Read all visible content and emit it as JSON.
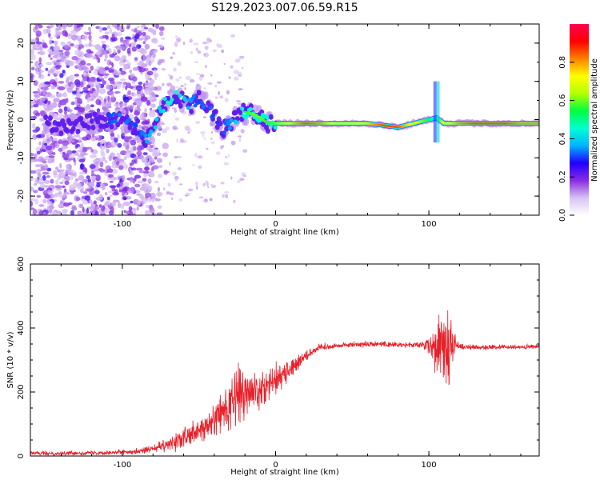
{
  "figure": {
    "title": "S129.2023.007.06.59.R15"
  },
  "chart_data": [
    {
      "type": "heatmap",
      "xlabel": "Height of straight line (km)",
      "ylabel": "Frequency (Hz)",
      "xlim": [
        -160,
        172
      ],
      "ylim": [
        -25,
        25
      ],
      "xticks": [
        -100,
        0,
        100
      ],
      "yticks": [
        -20,
        -10,
        0,
        10,
        20
      ],
      "colorbar": {
        "label": "Normalized spectral amplitude",
        "range": [
          0,
          1
        ],
        "ticks": [
          "0.0",
          "0.2",
          "0.4",
          "0.6",
          "0.8"
        ],
        "colormap": [
          "#ffffff",
          "#d7c2f2",
          "#8a2be2",
          "#2000ff",
          "#00b4ff",
          "#00ffd0",
          "#00ff40",
          "#b4ff00",
          "#ffff00",
          "#ff8000",
          "#ff0000",
          "#ff0050"
        ]
      },
      "ridge": [
        [
          -140,
          -2,
          0.25
        ],
        [
          -130,
          -1.5,
          0.25
        ],
        [
          -120,
          -0.5,
          0.3
        ],
        [
          -110,
          0,
          0.3
        ],
        [
          -100,
          0,
          0.35
        ],
        [
          -90,
          -2,
          0.3
        ],
        [
          -85,
          -5,
          0.35
        ],
        [
          -80,
          -3,
          0.4
        ],
        [
          -75,
          3,
          0.4
        ],
        [
          -70,
          5,
          0.45
        ],
        [
          -65,
          6,
          0.45
        ],
        [
          -60,
          5,
          0.4
        ],
        [
          -55,
          4,
          0.35
        ],
        [
          -50,
          6,
          0.3
        ],
        [
          -45,
          4,
          0.35
        ],
        [
          -40,
          1,
          0.3
        ],
        [
          -35,
          -3,
          0.3
        ],
        [
          -30,
          -1,
          0.35
        ],
        [
          -25,
          0.5,
          0.4
        ],
        [
          -20,
          2,
          0.55
        ],
        [
          -15,
          1.5,
          0.6
        ],
        [
          -10,
          0.5,
          0.6
        ],
        [
          -5,
          -1,
          0.55
        ],
        [
          0,
          -1,
          0.6
        ],
        [
          10,
          -1,
          0.75
        ],
        [
          20,
          -1,
          0.85
        ],
        [
          30,
          -1,
          0.8
        ],
        [
          40,
          -1,
          0.7
        ],
        [
          50,
          -1,
          0.7
        ],
        [
          60,
          -1,
          0.75
        ],
        [
          70,
          -1.5,
          0.85
        ],
        [
          80,
          -2,
          0.85
        ],
        [
          90,
          -1,
          0.7
        ],
        [
          100,
          0,
          0.55
        ],
        [
          105,
          0.5,
          0.5
        ],
        [
          110,
          -1,
          0.7
        ],
        [
          120,
          -1,
          0.8
        ],
        [
          130,
          -1,
          0.85
        ],
        [
          140,
          -1,
          0.85
        ],
        [
          150,
          -1,
          0.85
        ],
        [
          160,
          -1,
          0.8
        ],
        [
          170,
          -1,
          0.8
        ]
      ]
    },
    {
      "type": "line",
      "xlabel": "Height of straight line (km)",
      "ylabel": "SNR (10 * v/v)",
      "xlim": [
        -160,
        172
      ],
      "ylim": [
        0,
        600
      ],
      "xticks": [
        -100,
        0,
        100
      ],
      "yticks": [
        0,
        200,
        400,
        600
      ],
      "series": [
        {
          "color": "#e8202a",
          "envelope": [
            [
              -160,
              8,
              10
            ],
            [
              -140,
              8,
              10
            ],
            [
              -120,
              10,
              10
            ],
            [
              -100,
              12,
              12
            ],
            [
              -90,
              15,
              12
            ],
            [
              -80,
              22,
              18
            ],
            [
              -70,
              35,
              30
            ],
            [
              -60,
              55,
              45
            ],
            [
              -50,
              75,
              60
            ],
            [
              -40,
              110,
              80
            ],
            [
              -35,
              135,
              95
            ],
            [
              -30,
              160,
              110
            ],
            [
              -25,
              190,
              140
            ],
            [
              -22,
              200,
              150
            ],
            [
              -20,
              185,
              130
            ],
            [
              -15,
              200,
              110
            ],
            [
              -10,
              215,
              100
            ],
            [
              -5,
              225,
              70
            ],
            [
              0,
              240,
              70
            ],
            [
              5,
              255,
              60
            ],
            [
              10,
              275,
              50
            ],
            [
              15,
              295,
              40
            ],
            [
              20,
              315,
              30
            ],
            [
              25,
              330,
              20
            ],
            [
              30,
              340,
              15
            ],
            [
              40,
              345,
              12
            ],
            [
              50,
              348,
              12
            ],
            [
              60,
              350,
              12
            ],
            [
              70,
              350,
              12
            ],
            [
              80,
              348,
              12
            ],
            [
              90,
              347,
              12
            ],
            [
              95,
              346,
              15
            ],
            [
              100,
              345,
              40
            ],
            [
              105,
              340,
              110
            ],
            [
              108,
              330,
              200
            ],
            [
              110,
              320,
              270
            ],
            [
              112,
              330,
              250
            ],
            [
              115,
              345,
              80
            ],
            [
              120,
              342,
              12
            ],
            [
              130,
              340,
              12
            ],
            [
              140,
              340,
              10
            ],
            [
              150,
              340,
              10
            ],
            [
              160,
              340,
              10
            ],
            [
              172,
              342,
              10
            ]
          ]
        }
      ]
    }
  ]
}
